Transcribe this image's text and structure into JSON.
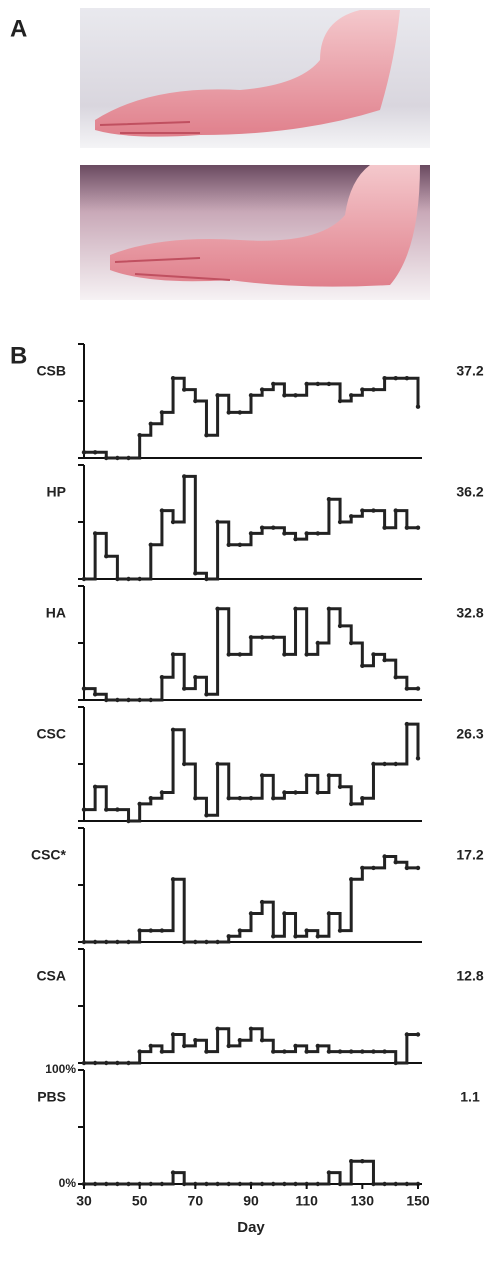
{
  "panel_a": {
    "label": "A"
  },
  "panel_b": {
    "label": "B"
  },
  "chart_data": {
    "type": "line",
    "step": true,
    "color": "#222",
    "xlabel": "Day",
    "xlim": [
      30,
      150
    ],
    "xticks": [
      30,
      50,
      70,
      90,
      110,
      130,
      150
    ],
    "ylim": [
      0,
      100
    ],
    "yticks": [
      {
        "value": 0,
        "label": "0%"
      },
      {
        "value": 50,
        "label": null
      },
      {
        "value": 100,
        "label": "100%"
      }
    ],
    "x": [
      30,
      34,
      38,
      42,
      46,
      50,
      54,
      58,
      62,
      66,
      70,
      74,
      78,
      82,
      86,
      90,
      94,
      98,
      102,
      106,
      110,
      114,
      118,
      122,
      126,
      130,
      134,
      138,
      142,
      146,
      150
    ],
    "series": [
      {
        "name": "CSB",
        "score": 37.2,
        "values": [
          5,
          5,
          0,
          0,
          0,
          20,
          30,
          40,
          70,
          60,
          50,
          20,
          55,
          40,
          40,
          55,
          60,
          65,
          55,
          55,
          65,
          65,
          65,
          50,
          55,
          60,
          60,
          70,
          70,
          70,
          45
        ]
      },
      {
        "name": "HP",
        "score": 36.2,
        "values": [
          0,
          40,
          20,
          0,
          0,
          0,
          30,
          60,
          50,
          90,
          5,
          0,
          50,
          30,
          30,
          40,
          45,
          45,
          40,
          35,
          40,
          40,
          70,
          50,
          55,
          60,
          60,
          45,
          60,
          45,
          45
        ]
      },
      {
        "name": "HA",
        "score": 32.8,
        "values": [
          10,
          5,
          0,
          0,
          0,
          0,
          0,
          20,
          40,
          10,
          20,
          5,
          80,
          40,
          40,
          55,
          55,
          55,
          40,
          80,
          40,
          50,
          80,
          65,
          50,
          30,
          40,
          35,
          20,
          10,
          10
        ]
      },
      {
        "name": "CSC",
        "score": 26.3,
        "values": [
          10,
          30,
          10,
          10,
          0,
          15,
          20,
          25,
          80,
          50,
          20,
          5,
          50,
          20,
          20,
          20,
          40,
          20,
          25,
          25,
          40,
          25,
          40,
          30,
          15,
          20,
          50,
          50,
          50,
          85,
          55
        ]
      },
      {
        "name": "CSC*",
        "score": 17.2,
        "values": [
          0,
          0,
          0,
          0,
          0,
          10,
          10,
          10,
          55,
          0,
          0,
          0,
          0,
          5,
          10,
          25,
          35,
          5,
          25,
          5,
          10,
          5,
          25,
          10,
          55,
          65,
          65,
          75,
          70,
          65,
          65
        ]
      },
      {
        "name": "CSA",
        "score": 12.8,
        "values": [
          0,
          0,
          0,
          0,
          0,
          10,
          15,
          10,
          25,
          15,
          20,
          10,
          30,
          15,
          20,
          30,
          20,
          10,
          10,
          15,
          10,
          15,
          10,
          10,
          10,
          10,
          10,
          10,
          0,
          25,
          25
        ]
      },
      {
        "name": "PBS",
        "score": 1.1,
        "values": [
          0,
          0,
          0,
          0,
          0,
          0,
          0,
          0,
          10,
          0,
          0,
          0,
          0,
          0,
          0,
          0,
          0,
          0,
          0,
          0,
          0,
          0,
          10,
          0,
          20,
          20,
          0,
          0,
          0,
          0,
          0
        ]
      }
    ]
  }
}
